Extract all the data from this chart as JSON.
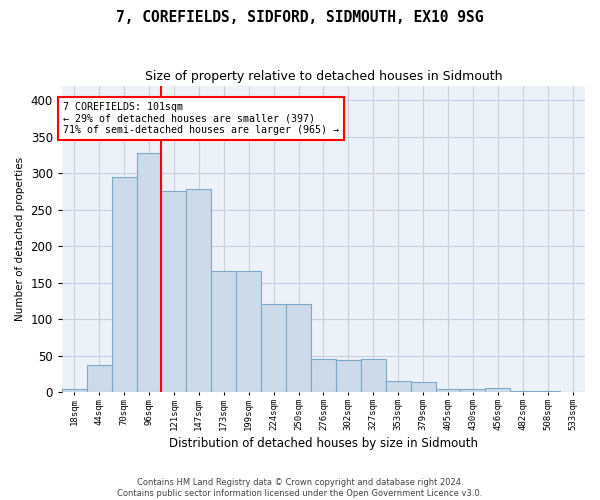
{
  "title": "7, COREFIELDS, SIDFORD, SIDMOUTH, EX10 9SG",
  "subtitle": "Size of property relative to detached houses in Sidmouth",
  "xlabel": "Distribution of detached houses by size in Sidmouth",
  "ylabel": "Number of detached properties",
  "bar_color": "#ccdaea",
  "bar_edge_color": "#7aaac8",
  "grid_color": "#c8d0e0",
  "bg_color": "#edf1f8",
  "categories": [
    "18sqm",
    "44sqm",
    "70sqm",
    "96sqm",
    "121sqm",
    "147sqm",
    "173sqm",
    "199sqm",
    "224sqm",
    "250sqm",
    "276sqm",
    "302sqm",
    "327sqm",
    "353sqm",
    "379sqm",
    "405sqm",
    "430sqm",
    "456sqm",
    "482sqm",
    "508sqm",
    "533sqm"
  ],
  "values": [
    4,
    38,
    295,
    328,
    275,
    278,
    166,
    166,
    121,
    121,
    46,
    44,
    45,
    15,
    14,
    5,
    5,
    6,
    2,
    2,
    1
  ],
  "ylim": [
    0,
    420
  ],
  "yticks": [
    0,
    50,
    100,
    150,
    200,
    250,
    300,
    350,
    400
  ],
  "vline_x_index": 3.5,
  "annotation_line1": "7 COREFIELDS: 101sqm",
  "annotation_line2": "← 29% of detached houses are smaller (397)",
  "annotation_line3": "71% of semi-detached houses are larger (965) →",
  "footer_line1": "Contains HM Land Registry data © Crown copyright and database right 2024.",
  "footer_line2": "Contains public sector information licensed under the Open Government Licence v3.0."
}
